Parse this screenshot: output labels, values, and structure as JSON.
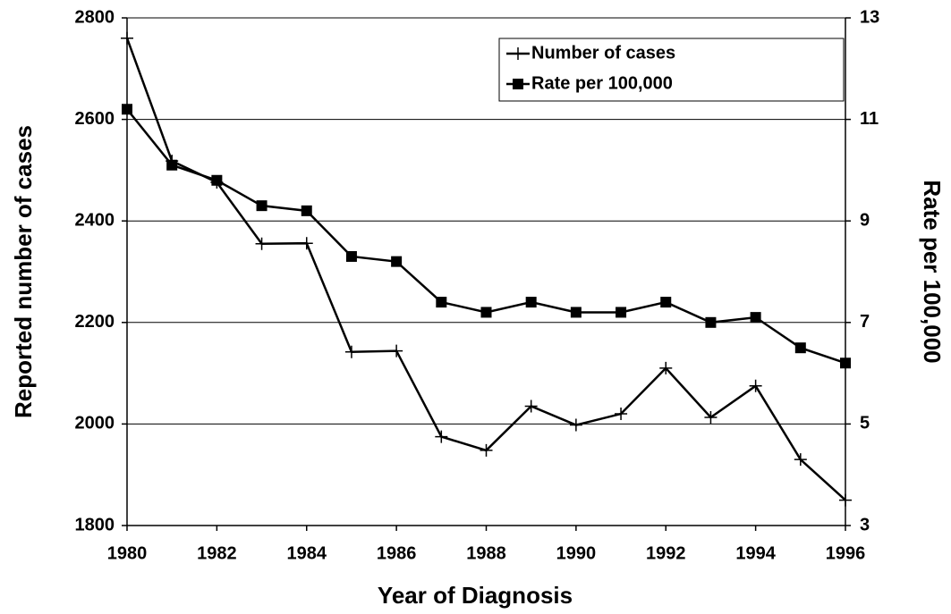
{
  "chart_data": {
    "type": "line",
    "x_label": "Year of Diagnosis",
    "y_label": "Reported number of cases",
    "y2_label": "Rate per 100,000",
    "x": [
      1980,
      1981,
      1982,
      1983,
      1984,
      1985,
      1986,
      1987,
      1988,
      1989,
      1990,
      1991,
      1992,
      1993,
      1994,
      1995,
      1996
    ],
    "series": [
      {
        "name": "Number of cases",
        "color": "#000000",
        "marker": "plus",
        "values": [
          2760,
          2518,
          2476,
          2355,
          2356,
          2142,
          2144,
          1975,
          1948,
          2035,
          1998,
          2020,
          2110,
          2013,
          2075,
          1930,
          1850
        ]
      },
      {
        "name": "Rate per 100,000",
        "color": "#000000",
        "marker": "square",
        "axis": "y2",
        "values": [
          11.2,
          10.1,
          9.8,
          9.3,
          9.2,
          8.3,
          8.2,
          7.4,
          7.2,
          7.4,
          7.2,
          7.2,
          7.4,
          7.0,
          7.1,
          6.5,
          6.2
        ]
      }
    ],
    "xlim": [
      1980,
      1996
    ],
    "xticks": [
      1980,
      1982,
      1984,
      1986,
      1988,
      1990,
      1992,
      1994,
      1996
    ],
    "ylim": [
      1800,
      2800
    ],
    "yticks": [
      1800,
      2000,
      2200,
      2400,
      2600,
      2800
    ],
    "y2lim": [
      3,
      13
    ],
    "y2ticks": [
      3,
      5,
      7,
      9,
      11,
      13
    ],
    "grid": true,
    "legend": "upper right"
  }
}
